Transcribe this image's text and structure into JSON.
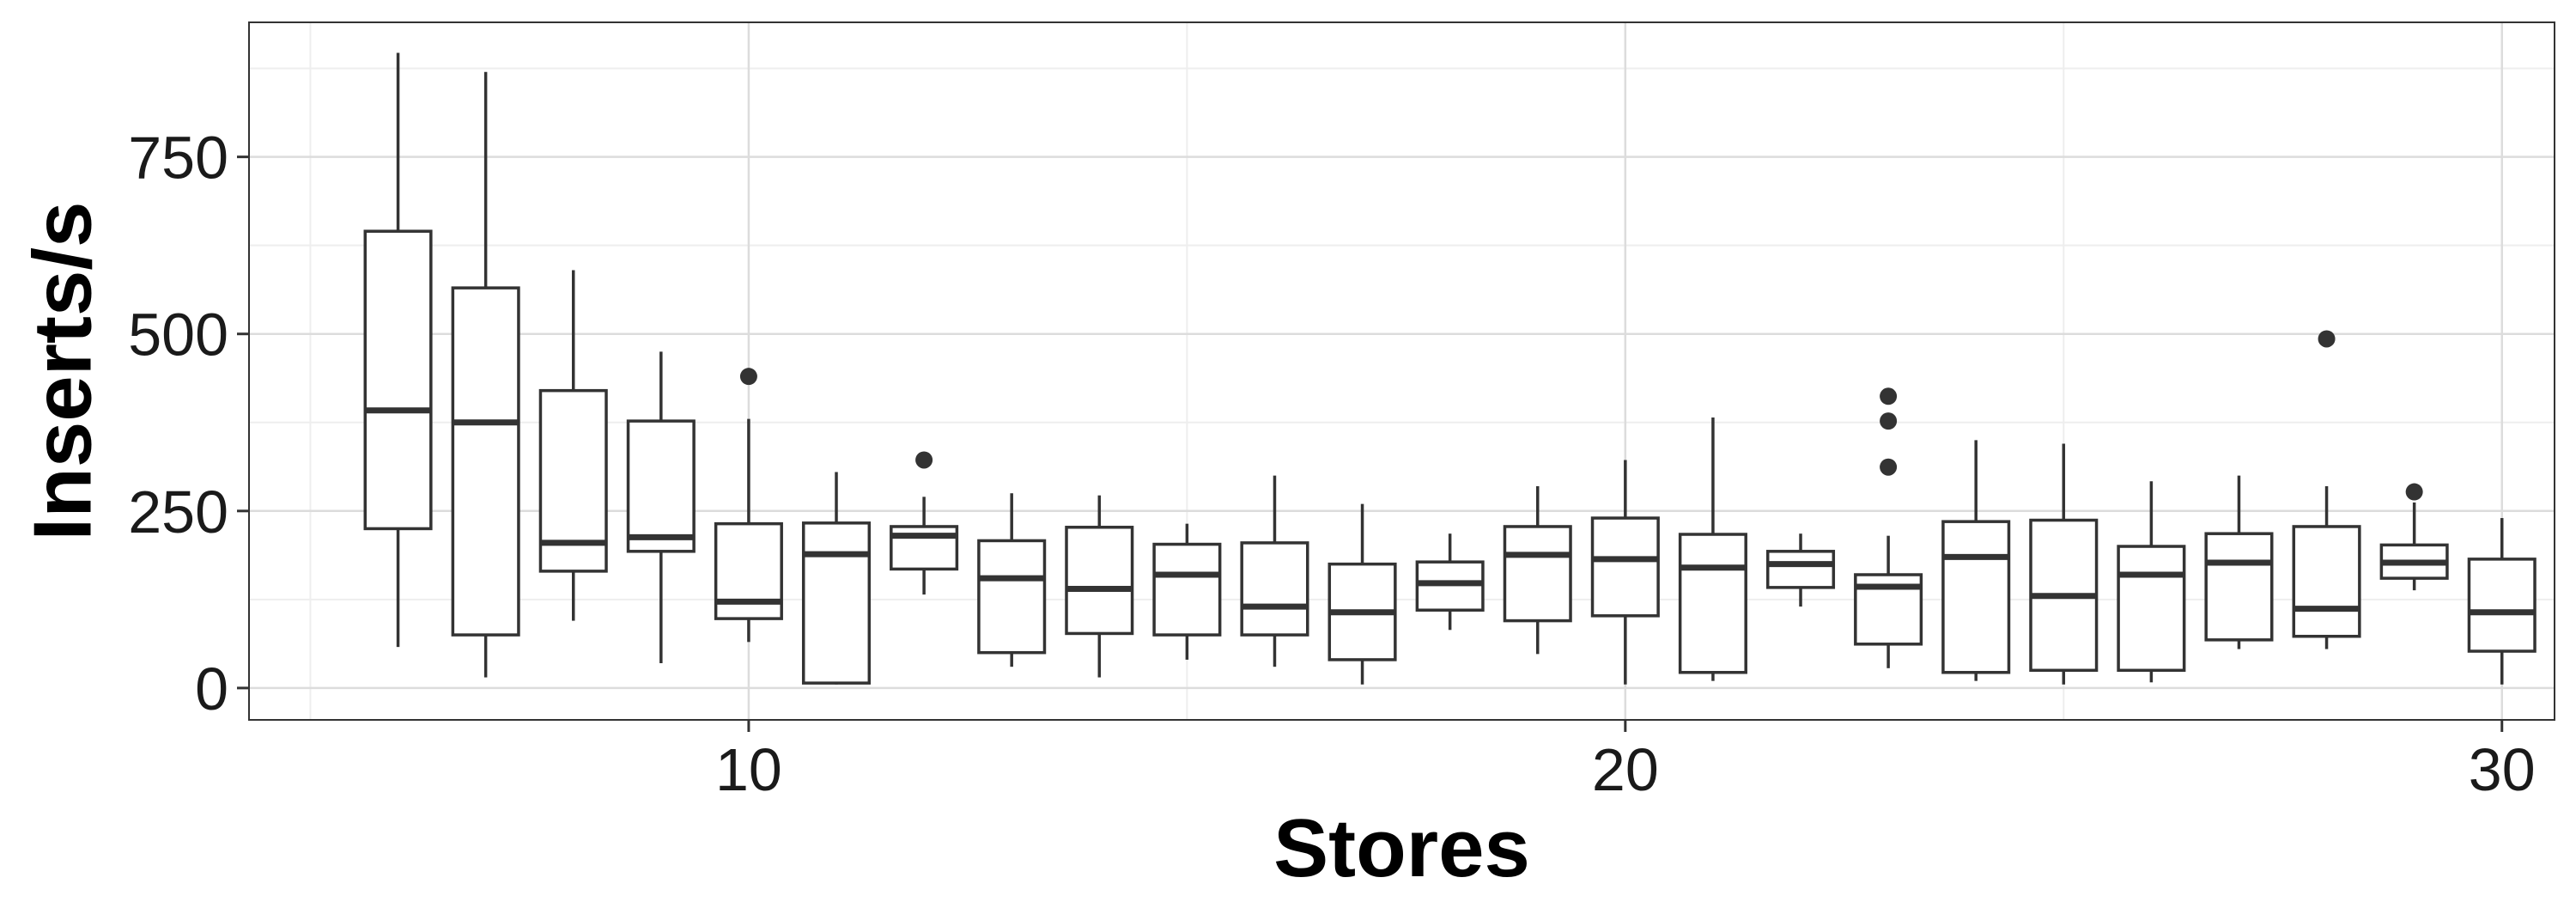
{
  "chart_data": {
    "type": "boxplot",
    "title": "",
    "xlabel": "Stores",
    "ylabel": "Inserts/s",
    "xlim": [
      4.3,
      30.6
    ],
    "ylim": [
      -45,
      940
    ],
    "x_ticks": [
      10,
      20,
      30
    ],
    "y_ticks": [
      0,
      250,
      500,
      750
    ],
    "x_tick_labels": [
      "10",
      "20",
      "30"
    ],
    "y_tick_labels": [
      "0",
      "250",
      "500",
      "750"
    ],
    "grid": true,
    "colors": {
      "panel_border": "#333333",
      "grid_major": "#dcdcdc",
      "grid_minor": "#eeeeee",
      "box": "#333333"
    },
    "boxes": [
      {
        "x": 6,
        "lower": 58,
        "q1": 225,
        "median": 392,
        "q3": 645,
        "upper": 897,
        "outliers": []
      },
      {
        "x": 7,
        "lower": 15,
        "q1": 75,
        "median": 375,
        "q3": 565,
        "upper": 870,
        "outliers": []
      },
      {
        "x": 8,
        "lower": 95,
        "q1": 165,
        "median": 205,
        "q3": 420,
        "upper": 590,
        "outliers": []
      },
      {
        "x": 9,
        "lower": 35,
        "q1": 193,
        "median": 213,
        "q3": 377,
        "upper": 475,
        "outliers": []
      },
      {
        "x": 10,
        "lower": 65,
        "q1": 98,
        "median": 122,
        "q3": 232,
        "upper": 380,
        "outliers": [
          440
        ]
      },
      {
        "x": 11,
        "lower": 5,
        "q1": 7,
        "median": 189,
        "q3": 233,
        "upper": 305,
        "outliers": []
      },
      {
        "x": 12,
        "lower": 132,
        "q1": 168,
        "median": 215,
        "q3": 228,
        "upper": 270,
        "outliers": [
          322
        ]
      },
      {
        "x": 13,
        "lower": 30,
        "q1": 50,
        "median": 155,
        "q3": 208,
        "upper": 275,
        "outliers": []
      },
      {
        "x": 14,
        "lower": 15,
        "q1": 77,
        "median": 140,
        "q3": 227,
        "upper": 272,
        "outliers": []
      },
      {
        "x": 15,
        "lower": 40,
        "q1": 75,
        "median": 160,
        "q3": 203,
        "upper": 232,
        "outliers": []
      },
      {
        "x": 16,
        "lower": 30,
        "q1": 75,
        "median": 115,
        "q3": 205,
        "upper": 300,
        "outliers": []
      },
      {
        "x": 17,
        "lower": 5,
        "q1": 40,
        "median": 107,
        "q3": 175,
        "upper": 260,
        "outliers": []
      },
      {
        "x": 18,
        "lower": 82,
        "q1": 110,
        "median": 148,
        "q3": 178,
        "upper": 218,
        "outliers": []
      },
      {
        "x": 19,
        "lower": 48,
        "q1": 95,
        "median": 188,
        "q3": 228,
        "upper": 285,
        "outliers": []
      },
      {
        "x": 20,
        "lower": 5,
        "q1": 102,
        "median": 182,
        "q3": 240,
        "upper": 322,
        "outliers": []
      },
      {
        "x": 21,
        "lower": 10,
        "q1": 22,
        "median": 170,
        "q3": 217,
        "upper": 382,
        "outliers": []
      },
      {
        "x": 22,
        "lower": 115,
        "q1": 142,
        "median": 175,
        "q3": 193,
        "upper": 218,
        "outliers": []
      },
      {
        "x": 23,
        "lower": 28,
        "q1": 62,
        "median": 143,
        "q3": 160,
        "upper": 215,
        "outliers": [
          312,
          377,
          412
        ]
      },
      {
        "x": 24,
        "lower": 10,
        "q1": 22,
        "median": 185,
        "q3": 235,
        "upper": 350,
        "outliers": []
      },
      {
        "x": 25,
        "lower": 5,
        "q1": 25,
        "median": 130,
        "q3": 237,
        "upper": 345,
        "outliers": []
      },
      {
        "x": 26,
        "lower": 8,
        "q1": 25,
        "median": 160,
        "q3": 200,
        "upper": 292,
        "outliers": []
      },
      {
        "x": 27,
        "lower": 55,
        "q1": 68,
        "median": 177,
        "q3": 218,
        "upper": 300,
        "outliers": []
      },
      {
        "x": 28,
        "lower": 55,
        "q1": 73,
        "median": 112,
        "q3": 228,
        "upper": 285,
        "outliers": [
          493
        ]
      },
      {
        "x": 29,
        "lower": 138,
        "q1": 155,
        "median": 177,
        "q3": 202,
        "upper": 262,
        "outliers": [
          277
        ]
      },
      {
        "x": 30,
        "lower": 5,
        "q1": 52,
        "median": 107,
        "q3": 182,
        "upper": 240,
        "outliers": []
      }
    ]
  }
}
